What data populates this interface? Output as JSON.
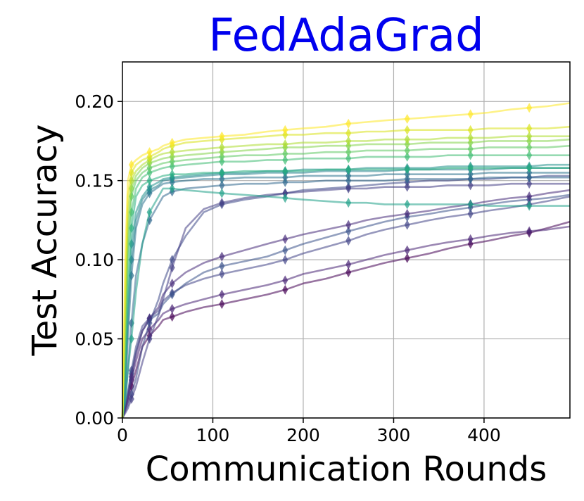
{
  "chart_data": {
    "type": "line",
    "title": "FedAdaGrad",
    "title_color": "#0000ee",
    "xlabel": "Communication Rounds",
    "ylabel": "Test Accuracy",
    "xlim": [
      0,
      495
    ],
    "ylim": [
      0,
      0.225
    ],
    "x_ticks": [
      0,
      100,
      200,
      300,
      400
    ],
    "x_tick_labels": [
      "0",
      "100",
      "200",
      "300",
      "400"
    ],
    "y_ticks": [
      0.0,
      0.05,
      0.1,
      0.15,
      0.2
    ],
    "y_tick_labels": [
      "0.00",
      "0.05",
      "0.10",
      "0.15",
      "0.20"
    ],
    "grid": true,
    "colormap": "viridis",
    "marker": "diamond",
    "x": [
      0,
      3,
      6,
      10,
      15,
      22,
      30,
      40,
      45,
      55,
      70,
      90,
      110,
      135,
      160,
      180,
      200,
      225,
      250,
      270,
      290,
      315,
      340,
      360,
      385,
      405,
      430,
      450,
      470,
      495
    ],
    "series": [
      {
        "color": "#440154",
        "values": [
          0.0,
          0.005,
          0.01,
          0.02,
          0.03,
          0.045,
          0.052,
          0.058,
          0.062,
          0.064,
          0.067,
          0.07,
          0.072,
          0.075,
          0.078,
          0.081,
          0.085,
          0.088,
          0.092,
          0.095,
          0.098,
          0.101,
          0.104,
          0.107,
          0.11,
          0.112,
          0.115,
          0.117,
          0.12,
          0.124
        ]
      },
      {
        "color": "#482475",
        "values": [
          0.0,
          0.006,
          0.012,
          0.024,
          0.036,
          0.05,
          0.056,
          0.062,
          0.066,
          0.069,
          0.072,
          0.075,
          0.078,
          0.081,
          0.084,
          0.087,
          0.091,
          0.094,
          0.097,
          0.1,
          0.103,
          0.106,
          0.109,
          0.111,
          0.113,
          0.115,
          0.117,
          0.118,
          0.119,
          0.121
        ]
      },
      {
        "color": "#414487",
        "values": [
          0.0,
          0.008,
          0.016,
          0.03,
          0.045,
          0.058,
          0.063,
          0.068,
          0.074,
          0.079,
          0.084,
          0.088,
          0.091,
          0.094,
          0.097,
          0.1,
          0.104,
          0.108,
          0.112,
          0.116,
          0.119,
          0.122,
          0.125,
          0.127,
          0.129,
          0.131,
          0.133,
          0.135,
          0.137,
          0.14
        ]
      },
      {
        "color": "#3b528b",
        "values": [
          0.0,
          0.007,
          0.015,
          0.028,
          0.042,
          0.055,
          0.062,
          0.066,
          0.072,
          0.078,
          0.085,
          0.092,
          0.096,
          0.099,
          0.102,
          0.106,
          0.11,
          0.114,
          0.118,
          0.121,
          0.124,
          0.127,
          0.129,
          0.131,
          0.133,
          0.135,
          0.137,
          0.138,
          0.139,
          0.141
        ]
      },
      {
        "color": "#472c7a",
        "values": [
          0.0,
          0.006,
          0.013,
          0.026,
          0.04,
          0.055,
          0.063,
          0.07,
          0.078,
          0.085,
          0.092,
          0.098,
          0.102,
          0.106,
          0.11,
          0.113,
          0.116,
          0.119,
          0.122,
          0.125,
          0.127,
          0.129,
          0.131,
          0.133,
          0.135,
          0.137,
          0.139,
          0.14,
          0.142,
          0.144
        ]
      },
      {
        "color": "#3e4989",
        "values": [
          0.0,
          0.004,
          0.008,
          0.015,
          0.025,
          0.045,
          0.06,
          0.075,
          0.085,
          0.1,
          0.115,
          0.13,
          0.135,
          0.138,
          0.14,
          0.142,
          0.144,
          0.145,
          0.146,
          0.147,
          0.148,
          0.149,
          0.15,
          0.15,
          0.151,
          0.151,
          0.152,
          0.152,
          0.153,
          0.153
        ]
      },
      {
        "color": "#433e85",
        "values": [
          0.0,
          0.003,
          0.006,
          0.012,
          0.02,
          0.035,
          0.05,
          0.065,
          0.075,
          0.095,
          0.12,
          0.132,
          0.136,
          0.139,
          0.141,
          0.142,
          0.143,
          0.144,
          0.145,
          0.145,
          0.146,
          0.146,
          0.146,
          0.147,
          0.147,
          0.147,
          0.148,
          0.148,
          0.148,
          0.148
        ]
      },
      {
        "color": "#31688e",
        "values": [
          0.0,
          0.01,
          0.03,
          0.06,
          0.09,
          0.11,
          0.125,
          0.135,
          0.14,
          0.143,
          0.145,
          0.146,
          0.147,
          0.148,
          0.148,
          0.149,
          0.149,
          0.15,
          0.15,
          0.15,
          0.15,
          0.151,
          0.151,
          0.151,
          0.151,
          0.152,
          0.152,
          0.152,
          0.152,
          0.152
        ]
      },
      {
        "color": "#2c728e",
        "values": [
          0.0,
          0.015,
          0.05,
          0.09,
          0.12,
          0.135,
          0.142,
          0.146,
          0.148,
          0.149,
          0.15,
          0.151,
          0.151,
          0.152,
          0.152,
          0.152,
          0.153,
          0.153,
          0.153,
          0.153,
          0.154,
          0.154,
          0.154,
          0.154,
          0.154,
          0.155,
          0.155,
          0.155,
          0.155,
          0.155
        ]
      },
      {
        "color": "#26828e",
        "values": [
          0.0,
          0.02,
          0.06,
          0.1,
          0.125,
          0.138,
          0.144,
          0.147,
          0.15,
          0.151,
          0.152,
          0.153,
          0.154,
          0.154,
          0.155,
          0.155,
          0.155,
          0.156,
          0.156,
          0.156,
          0.156,
          0.157,
          0.157,
          0.157,
          0.157,
          0.157,
          0.158,
          0.158,
          0.158,
          0.158
        ]
      },
      {
        "color": "#21918c",
        "values": [
          0.0,
          0.025,
          0.07,
          0.11,
          0.13,
          0.14,
          0.146,
          0.149,
          0.151,
          0.152,
          0.153,
          0.154,
          0.155,
          0.155,
          0.156,
          0.156,
          0.157,
          0.157,
          0.157,
          0.158,
          0.158,
          0.158,
          0.158,
          0.159,
          0.159,
          0.159,
          0.159,
          0.159,
          0.16,
          0.16
        ]
      },
      {
        "color": "#1fa088",
        "values": [
          0.0,
          0.01,
          0.03,
          0.05,
          0.08,
          0.11,
          0.13,
          0.14,
          0.145,
          0.145,
          0.144,
          0.143,
          0.142,
          0.141,
          0.14,
          0.139,
          0.138,
          0.137,
          0.136,
          0.136,
          0.135,
          0.135,
          0.135,
          0.135,
          0.135,
          0.134,
          0.134,
          0.134,
          0.134,
          0.134
        ]
      },
      {
        "color": "#28ae80",
        "values": [
          0.0,
          0.03,
          0.08,
          0.12,
          0.14,
          0.147,
          0.15,
          0.152,
          0.153,
          0.154,
          0.154,
          0.155,
          0.155,
          0.156,
          0.156,
          0.156,
          0.156,
          0.157,
          0.157,
          0.157,
          0.157,
          0.157,
          0.157,
          0.158,
          0.158,
          0.158,
          0.158,
          0.158,
          0.158,
          0.158
        ]
      },
      {
        "color": "#3fbc73",
        "values": [
          0.0,
          0.04,
          0.1,
          0.13,
          0.145,
          0.152,
          0.155,
          0.157,
          0.158,
          0.159,
          0.16,
          0.161,
          0.162,
          0.162,
          0.163,
          0.163,
          0.164,
          0.164,
          0.164,
          0.165,
          0.165,
          0.165,
          0.165,
          0.166,
          0.166,
          0.166,
          0.166,
          0.166,
          0.166,
          0.166
        ]
      },
      {
        "color": "#5ec962",
        "values": [
          0.0,
          0.05,
          0.11,
          0.14,
          0.15,
          0.155,
          0.158,
          0.16,
          0.161,
          0.162,
          0.163,
          0.164,
          0.165,
          0.166,
          0.166,
          0.167,
          0.167,
          0.168,
          0.168,
          0.169,
          0.169,
          0.169,
          0.17,
          0.17,
          0.17,
          0.171,
          0.171,
          0.171,
          0.171,
          0.172
        ]
      },
      {
        "color": "#84d44b",
        "values": [
          0.0,
          0.06,
          0.12,
          0.145,
          0.153,
          0.158,
          0.161,
          0.163,
          0.164,
          0.165,
          0.166,
          0.167,
          0.168,
          0.169,
          0.17,
          0.171,
          0.171,
          0.172,
          0.172,
          0.173,
          0.173,
          0.173,
          0.174,
          0.174,
          0.174,
          0.175,
          0.175,
          0.175,
          0.175,
          0.176
        ]
      },
      {
        "color": "#addc30",
        "values": [
          0.0,
          0.07,
          0.13,
          0.15,
          0.156,
          0.16,
          0.163,
          0.166,
          0.167,
          0.168,
          0.169,
          0.17,
          0.171,
          0.172,
          0.173,
          0.173,
          0.174,
          0.174,
          0.175,
          0.175,
          0.176,
          0.176,
          0.176,
          0.177,
          0.177,
          0.177,
          0.178,
          0.178,
          0.178,
          0.178
        ]
      },
      {
        "color": "#d8e219",
        "values": [
          0.0,
          0.08,
          0.14,
          0.155,
          0.16,
          0.163,
          0.165,
          0.168,
          0.17,
          0.172,
          0.174,
          0.175,
          0.176,
          0.177,
          0.178,
          0.179,
          0.179,
          0.18,
          0.18,
          0.181,
          0.181,
          0.182,
          0.182,
          0.182,
          0.182,
          0.183,
          0.183,
          0.183,
          0.183,
          0.184
        ]
      },
      {
        "color": "#fde725",
        "values": [
          0.0,
          0.1,
          0.15,
          0.16,
          0.163,
          0.166,
          0.168,
          0.17,
          0.172,
          0.174,
          0.176,
          0.177,
          0.178,
          0.179,
          0.181,
          0.182,
          0.183,
          0.184,
          0.186,
          0.187,
          0.188,
          0.189,
          0.19,
          0.191,
          0.192,
          0.193,
          0.195,
          0.196,
          0.197,
          0.199
        ]
      }
    ]
  }
}
